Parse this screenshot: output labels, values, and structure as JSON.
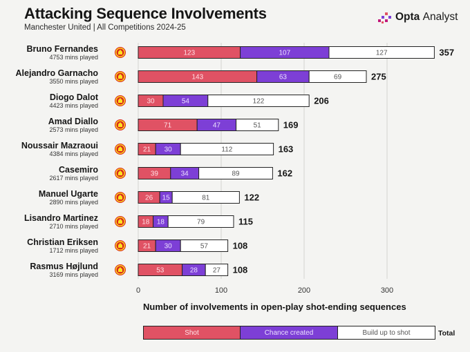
{
  "header": {
    "title": "Attacking Sequence Involvements",
    "subtitle": "Manchester United | All Competitions 2024-25",
    "brand_bold": "Opta",
    "brand_light": "Analyst"
  },
  "colors": {
    "shot": "#e05264",
    "chance_created": "#7d3fd6",
    "build_up": "#ffffff",
    "background": "#f4f4f2",
    "crest_red": "#da291c",
    "crest_yellow": "#fbe122"
  },
  "chart_data": {
    "type": "bar",
    "orientation": "horizontal",
    "stacked": true,
    "title": "Attacking Sequence Involvements",
    "subtitle": "Manchester United | All Competitions 2024-25",
    "xlabel": "Number of involvements in open-play shot-ending sequences",
    "xlim": [
      0,
      357
    ],
    "xticks": [
      0,
      100,
      200,
      300
    ],
    "series_names": [
      "Shot",
      "Chance created",
      "Build up to shot"
    ],
    "total_label": "Total",
    "players": [
      {
        "name": "Bruno Fernandes",
        "mins": "4753 mins played",
        "shot": 123,
        "chance": 107,
        "build": 127,
        "total": 357
      },
      {
        "name": "Alejandro Garnacho",
        "mins": "3550 mins played",
        "shot": 143,
        "chance": 63,
        "build": 69,
        "total": 275
      },
      {
        "name": "Diogo Dalot",
        "mins": "4423 mins played",
        "shot": 30,
        "chance": 54,
        "build": 122,
        "total": 206
      },
      {
        "name": "Amad Diallo",
        "mins": "2573 mins played",
        "shot": 71,
        "chance": 47,
        "build": 51,
        "total": 169
      },
      {
        "name": "Noussair Mazraoui",
        "mins": "4384 mins played",
        "shot": 21,
        "chance": 30,
        "build": 112,
        "total": 163
      },
      {
        "name": "Casemiro",
        "mins": "2617 mins played",
        "shot": 39,
        "chance": 34,
        "build": 89,
        "total": 162
      },
      {
        "name": "Manuel Ugarte",
        "mins": "2890 mins played",
        "shot": 26,
        "chance": 15,
        "build": 81,
        "total": 122
      },
      {
        "name": "Lisandro Martinez",
        "mins": "2710 mins played",
        "shot": 18,
        "chance": 18,
        "build": 79,
        "total": 115
      },
      {
        "name": "Christian Eriksen",
        "mins": "1712 mins played",
        "shot": 21,
        "chance": 30,
        "build": 57,
        "total": 108
      },
      {
        "name": "Rasmus Højlund",
        "mins": "3169 mins played",
        "shot": 53,
        "chance": 28,
        "build": 27,
        "total": 108
      }
    ],
    "legend": {
      "shot": "Shot",
      "chance": "Chance created",
      "build": "Build up to shot"
    }
  }
}
